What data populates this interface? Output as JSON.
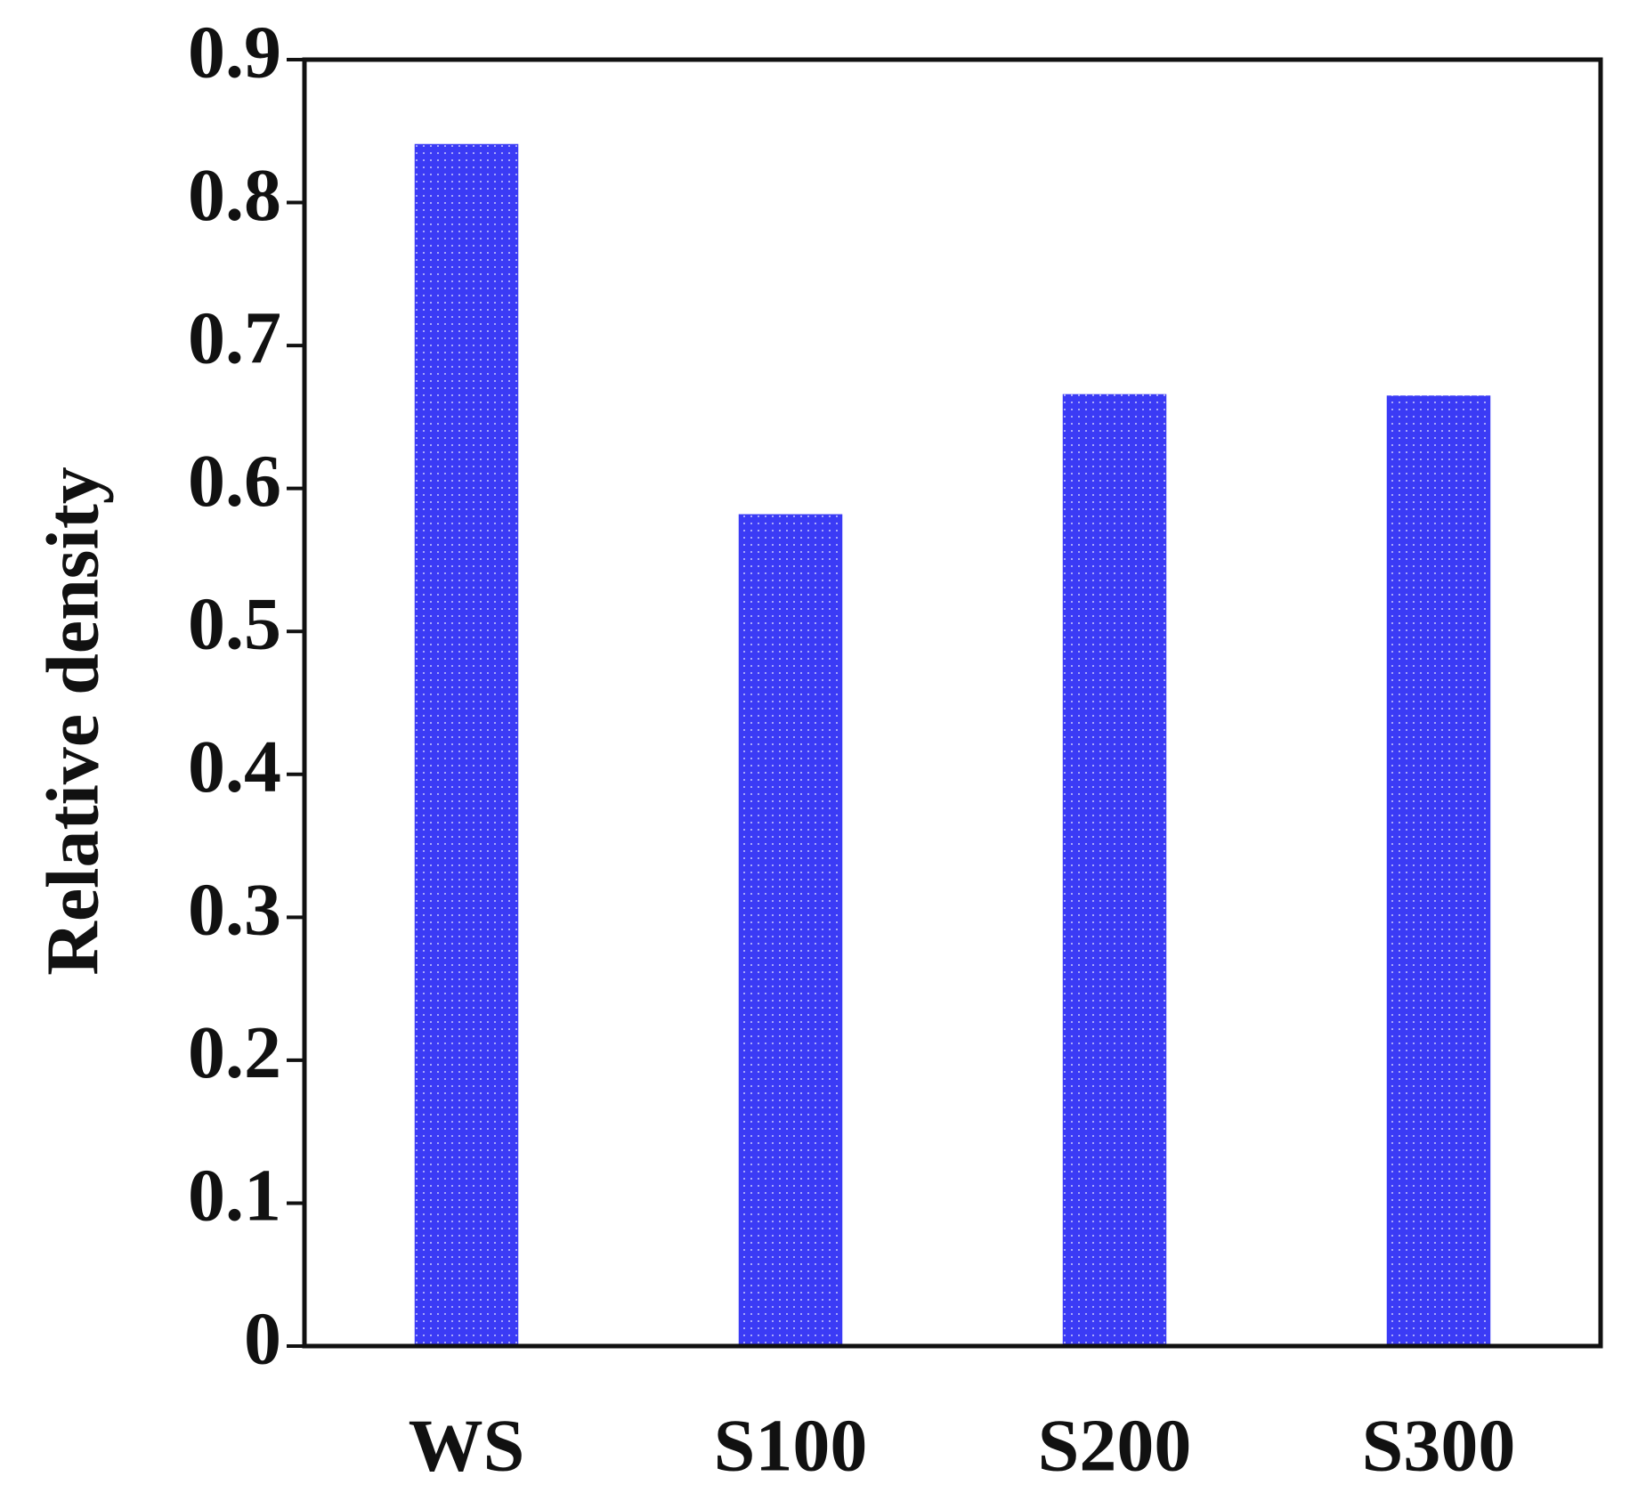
{
  "chart_data": {
    "type": "bar",
    "y_label": "Relative density",
    "categories": [
      "WS",
      "S100",
      "S200",
      "S300"
    ],
    "values": [
      0.841,
      0.582,
      0.666,
      0.665
    ],
    "color": "#3b3bf5",
    "ylim": [
      0,
      0.9
    ],
    "yticks": [
      0,
      0.1,
      0.2,
      0.3,
      0.4,
      0.5,
      0.6,
      0.7,
      0.8,
      0.9
    ]
  }
}
